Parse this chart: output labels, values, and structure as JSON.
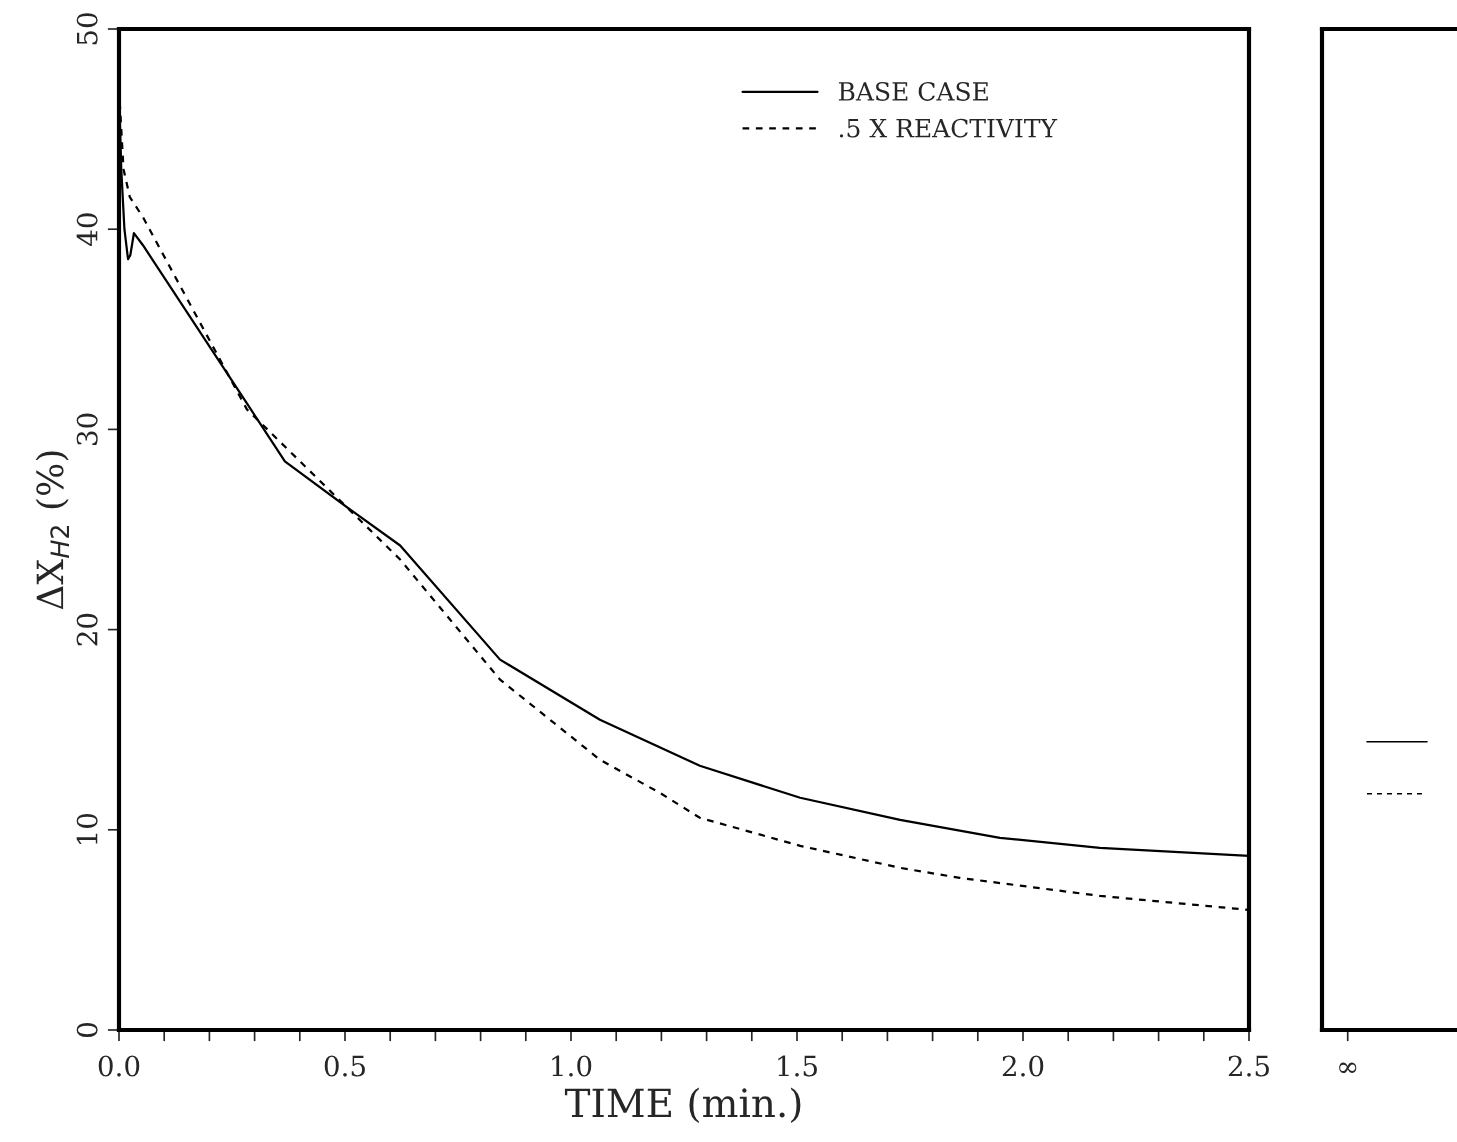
{
  "chart_data": [
    {
      "type": "line",
      "xlabel": "TIME (min.)",
      "ylabel": "ΔX$_{H2}$ (%)",
      "xlim": [
        0,
        2.5
      ],
      "ylim": [
        0,
        50
      ],
      "xticks": [
        {
          "value": 0,
          "label": "0.0"
        },
        {
          "value": 0.1,
          "label": null
        },
        {
          "value": 0.2,
          "label": null
        },
        {
          "value": 0.3,
          "label": null
        },
        {
          "value": 0.4,
          "label": null
        },
        0.5,
        {
          "value": 0.6,
          "label": null
        },
        {
          "value": 0.7,
          "label": null
        },
        {
          "value": 0.8,
          "label": null
        },
        {
          "value": 0.9,
          "label": null
        },
        {
          "value": 1.0,
          "label": "1.0"
        },
        {
          "value": 1.1,
          "label": null
        },
        {
          "value": 1.2,
          "label": null
        },
        {
          "value": 1.3,
          "label": null
        },
        {
          "value": 1.4,
          "label": null
        },
        1.5,
        {
          "value": 1.6,
          "label": null
        },
        {
          "value": 1.7,
          "label": null
        },
        {
          "value": 1.8,
          "label": null
        },
        {
          "value": 1.9,
          "label": null
        },
        {
          "value": 2.0,
          "label": "2.0"
        },
        {
          "value": 2.1,
          "label": null
        },
        {
          "value": 2.2,
          "label": null
        },
        {
          "value": 2.3,
          "label": null
        },
        {
          "value": 2.4,
          "label": null
        },
        2.5
      ],
      "yticks": [
        0,
        10,
        20,
        30,
        40,
        50
      ],
      "grid": false,
      "legend": "top right",
      "series": [
        {
          "name": "BASE CASE",
          "color": "#000000",
          "line_style": "solid",
          "x": [
            0,
            0.005,
            0.012,
            0.02,
            0.025,
            0.033,
            0.053,
            0.283,
            0.367,
            0.511,
            0.622,
            0.843,
            1.064,
            1.285,
            1.507,
            1.728,
            1.949,
            2.17,
            2.5
          ],
          "values": [
            47,
            43,
            40,
            38.5,
            38.7,
            39.8,
            39.2,
            31.3,
            28.4,
            26.0,
            24.2,
            18.5,
            15.5,
            13.2,
            11.6,
            10.5,
            9.6,
            9.1,
            8.7
          ]
        },
        {
          "name": ".5 X REACTIVITY",
          "color": "#000000",
          "line_style": "dashed",
          "x": [
            0,
            0.01,
            0.024,
            0.053,
            0.283,
            0.622,
            0.843,
            1.064,
            1.2,
            1.285,
            1.507,
            1.728,
            1.86,
            2.17,
            2.5
          ],
          "values": [
            47,
            43,
            41.6,
            40.6,
            31.0,
            23.5,
            17.5,
            13.5,
            11.8,
            10.6,
            9.2,
            8.1,
            7.6,
            6.7,
            6.0
          ]
        }
      ]
    },
    {
      "type": "line",
      "categories": [
        "∞"
      ],
      "ylim": [
        0,
        50
      ],
      "tick_labels": "x",
      "grid": false,
      "ref_lines": [
        {
          "axis": "y",
          "value": 14.4,
          "color": "#000000",
          "line_style": "solid"
        },
        {
          "axis": "y",
          "value": 11.8,
          "color": "#000000",
          "line_style": "dashed"
        }
      ]
    }
  ]
}
